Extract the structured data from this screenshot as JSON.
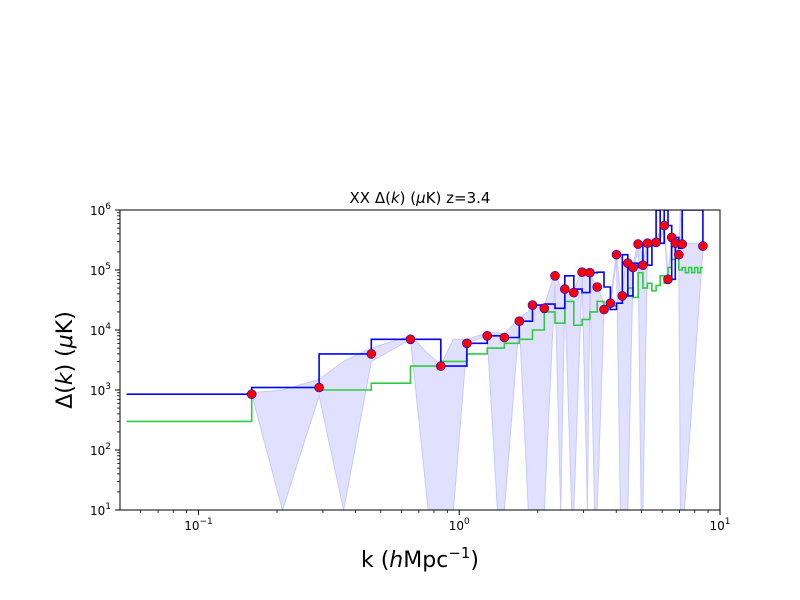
{
  "chart_data": {
    "type": "line",
    "title_parts": [
      "XX  Δ(",
      "k",
      ") (",
      "μ",
      "K)  z=3.4"
    ],
    "xlabel_parts": [
      "k (",
      "h",
      "Mpc",
      "−1",
      ")"
    ],
    "ylabel_parts": [
      "Δ(",
      "k",
      ") (",
      "μ",
      "K)"
    ],
    "xscale": "log",
    "yscale": "log",
    "xlim": [
      0.05,
      10
    ],
    "ylim": [
      10,
      1000000
    ],
    "x_ticks": [
      {
        "value": 0.1,
        "base": "10",
        "exp": "−1"
      },
      {
        "value": 1,
        "base": "10",
        "exp": "0"
      },
      {
        "value": 10,
        "base": "10",
        "exp": "1"
      }
    ],
    "y_ticks": [
      {
        "value": 10,
        "base": "10",
        "exp": "1"
      },
      {
        "value": 100,
        "base": "10",
        "exp": "2"
      },
      {
        "value": 1000,
        "base": "10",
        "exp": "3"
      },
      {
        "value": 10000,
        "base": "10",
        "exp": "4"
      },
      {
        "value": 100000,
        "base": "10",
        "exp": "5"
      },
      {
        "value": 1000000,
        "base": "10",
        "exp": "6"
      }
    ],
    "colors": {
      "measured": "#0000ff",
      "points": "#ff0000",
      "noise": "#2ecc40",
      "error_band": "#c8c8ff"
    },
    "series": [
      {
        "style": "steps",
        "color": "#0000ff",
        "x": [
          0.053,
          0.16,
          0.29,
          0.46,
          0.65,
          0.85,
          1.07,
          1.28,
          1.49,
          1.7,
          1.91,
          2.12,
          2.33,
          2.54,
          2.75,
          2.96,
          3.17,
          3.38,
          3.59,
          3.8,
          4.01,
          4.22,
          4.43,
          4.64,
          4.85,
          5.06,
          5.27,
          5.48,
          5.69,
          5.9,
          6.11,
          6.32,
          6.53,
          6.74,
          6.95,
          7.16,
          8.6
        ],
        "y": [
          850,
          1100,
          4000,
          7000,
          7000,
          2500,
          6000,
          8000,
          7500,
          14000,
          26000,
          27000,
          23000,
          80000,
          48000,
          42000,
          90000,
          92000,
          52000,
          22000,
          28000,
          180000,
          37000,
          130000,
          110000,
          270000,
          120000,
          280000,
          1000000,
          280000,
          1000000,
          550000,
          70000,
          350000,
          230000,
          1000000,
          250000
        ]
      },
      {
        "style": "steps",
        "color": "#2ecc40",
        "x": [
          0.053,
          0.16,
          0.29,
          0.46,
          0.65,
          0.85,
          1.07,
          1.28,
          1.49,
          1.7,
          1.91,
          2.12,
          2.33,
          2.54,
          2.75,
          2.96,
          3.17,
          3.38,
          3.59,
          3.8,
          4.01,
          4.22,
          4.43,
          4.64,
          4.85,
          5.06,
          5.27,
          5.48,
          5.69,
          5.9,
          6.11,
          6.32,
          6.53,
          6.74,
          6.95,
          7.16,
          7.37,
          7.58,
          7.79,
          8.0,
          8.21,
          8.42,
          8.6
        ],
        "y": [
          300,
          1100,
          1000,
          1300,
          2500,
          3000,
          4000,
          5000,
          6000,
          7000,
          10000,
          20000,
          13000,
          30000,
          12000,
          15000,
          20000,
          30000,
          22000,
          25000,
          28000,
          40000,
          50000,
          35000,
          90000,
          50000,
          60000,
          45000,
          55000,
          80000,
          60000,
          110000,
          150000,
          200000,
          100000,
          110000,
          90000,
          110000,
          90000,
          110000,
          90000,
          110000,
          110000
        ]
      }
    ],
    "points": {
      "color": "#ff0000",
      "x": [
        0.16,
        0.29,
        0.46,
        0.65,
        0.85,
        1.07,
        1.28,
        1.49,
        1.7,
        1.91,
        2.12,
        2.33,
        2.54,
        2.75,
        2.96,
        3.17,
        3.38,
        3.59,
        3.8,
        4.01,
        4.22,
        4.43,
        4.64,
        4.85,
        5.06,
        5.27,
        5.69,
        6.11,
        6.32,
        6.53,
        6.74,
        6.95,
        7.16,
        8.6
      ],
      "y": [
        850,
        1100,
        4000,
        7000,
        2500,
        6000,
        8000,
        7500,
        14000,
        26000,
        23000,
        80000,
        48000,
        42000,
        92000,
        90000,
        52000,
        22000,
        28000,
        180000,
        37000,
        130000,
        110000,
        270000,
        120000,
        280000,
        290000,
        550000,
        70000,
        350000,
        280000,
        180000,
        270000,
        250000
      ]
    },
    "error_band": {
      "color": "#c8c8ff",
      "x": [
        0.16,
        0.21,
        0.29,
        0.36,
        0.46,
        0.65,
        0.76,
        0.85,
        0.95,
        1.07,
        1.28,
        1.4,
        1.49,
        1.7,
        1.84,
        1.91,
        2.04,
        2.12,
        2.33,
        2.45,
        2.54,
        2.7,
        2.75,
        2.96,
        3.1,
        3.17,
        3.3,
        3.38,
        3.59,
        3.8,
        4.01,
        4.15,
        4.22,
        4.35,
        4.43,
        4.64,
        4.85,
        4.98,
        5.06,
        5.27,
        5.69,
        6.11,
        6.32,
        6.53,
        6.74,
        6.95,
        7.05,
        7.16,
        7.3,
        8.6
      ],
      "lower": [
        850,
        10,
        800,
        10,
        3000,
        7000,
        10,
        10,
        10,
        6000,
        8000,
        10,
        10,
        14000,
        10,
        10,
        10,
        10,
        60000,
        10,
        40000,
        10,
        10,
        80000,
        10,
        70000,
        10,
        10,
        20000,
        25000,
        150000,
        10,
        10,
        10,
        10,
        100000,
        220000,
        10,
        10,
        250000,
        250000,
        450000,
        60000,
        300000,
        250000,
        150000,
        10,
        10,
        10,
        220000
      ],
      "upper": [
        900,
        1000,
        1500,
        3000,
        5000,
        8000,
        4000,
        2600,
        7000,
        7000,
        9000,
        9000,
        8500,
        16000,
        20000,
        28000,
        25000,
        25000,
        90000,
        50000,
        52000,
        45000,
        45000,
        100000,
        95000,
        95000,
        60000,
        60000,
        25000,
        30000,
        200000,
        40000,
        40000,
        140000,
        140000,
        120000,
        300000,
        200000,
        130000,
        300000,
        320000,
        600000,
        80000,
        380000,
        300000,
        200000,
        1000000,
        300000,
        280000,
        280000
      ]
    }
  }
}
